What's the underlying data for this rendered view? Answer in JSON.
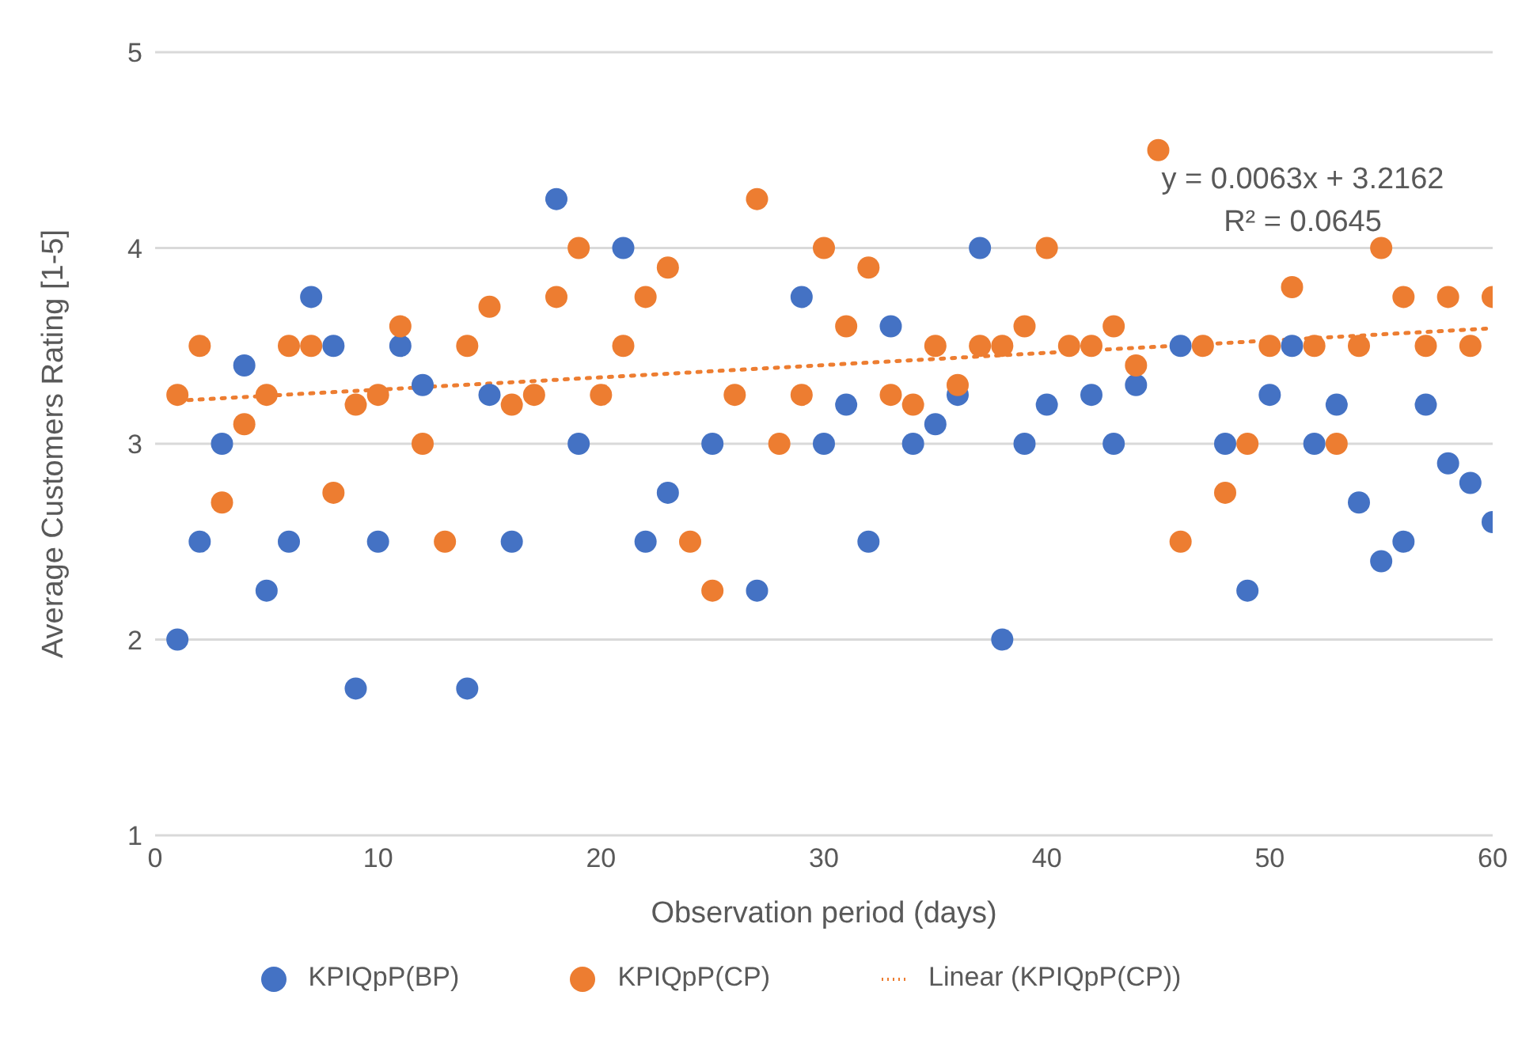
{
  "chart_data": {
    "type": "scatter",
    "xlabel": "Observation period (days)",
    "ylabel": "Average Customers Rating [1-5]",
    "x": [
      1,
      2,
      3,
      4,
      5,
      6,
      7,
      8,
      9,
      10,
      11,
      12,
      13,
      14,
      15,
      16,
      17,
      18,
      19,
      20,
      21,
      22,
      23,
      24,
      25,
      26,
      27,
      28,
      29,
      30,
      31,
      32,
      33,
      34,
      35,
      36,
      37,
      38,
      39,
      40,
      41,
      42,
      43,
      44,
      45,
      46,
      47,
      48,
      49,
      50,
      51,
      52,
      53,
      54,
      55,
      56,
      57,
      58,
      59,
      60
    ],
    "series": [
      {
        "name": "KPIQpP(BP)",
        "color": "#4472c4",
        "marker": "circle",
        "values": [
          2,
          2.5,
          3,
          3.4,
          2.25,
          2.5,
          3.75,
          3.5,
          1.75,
          2.5,
          3.5,
          3.3,
          null,
          1.75,
          3.25,
          2.5,
          null,
          4.25,
          3,
          null,
          4,
          2.5,
          2.75,
          null,
          3,
          null,
          2.25,
          null,
          3.75,
          3,
          3.2,
          2.5,
          3.6,
          3,
          3.1,
          3.25,
          4,
          2,
          3,
          3.2,
          null,
          3.25,
          3,
          3.3,
          null,
          3.5,
          null,
          3,
          2.25,
          3.25,
          3.5,
          3,
          3.2,
          2.7,
          2.4,
          2.5,
          3.2,
          2.9,
          2.8,
          2.6
        ]
      },
      {
        "name": "KPIQpP(CP)",
        "color": "#ed7d31",
        "marker": "circle",
        "values": [
          3.25,
          3.5,
          2.7,
          3.1,
          3.25,
          3.5,
          3.5,
          2.75,
          3.2,
          3.25,
          3.6,
          3,
          2.5,
          3.5,
          3.7,
          3.2,
          3.25,
          3.75,
          4,
          3.25,
          3.5,
          3.75,
          3.9,
          2.5,
          2.25,
          3.25,
          4.25,
          3,
          3.25,
          4,
          3.6,
          3.9,
          3.25,
          3.2,
          3.5,
          3.3,
          3.5,
          3.5,
          3.6,
          4,
          3.5,
          3.5,
          3.6,
          3.4,
          4.5,
          2.5,
          3.5,
          2.75,
          3,
          3.5,
          3.8,
          3.5,
          3,
          3.5,
          4,
          3.75,
          3.5,
          3.75,
          3.5,
          3.75
        ]
      },
      {
        "name": "Linear (KPIQpP(CP))",
        "type": "line",
        "color": "#ed7d31",
        "line_style": "dotted",
        "x": [
          1,
          60
        ],
        "values": [
          3.22,
          3.59
        ]
      }
    ],
    "xlim": [
      0,
      60
    ],
    "xticks": [
      0,
      10,
      20,
      30,
      40,
      50,
      60
    ],
    "ylim": [
      1,
      5
    ],
    "yticks": [
      1,
      2,
      3,
      4,
      5
    ],
    "grid": "y",
    "legend": "bottom",
    "annotations": [
      "y = 0.0063x + 3.2162",
      "R² = 0.0645"
    ]
  }
}
